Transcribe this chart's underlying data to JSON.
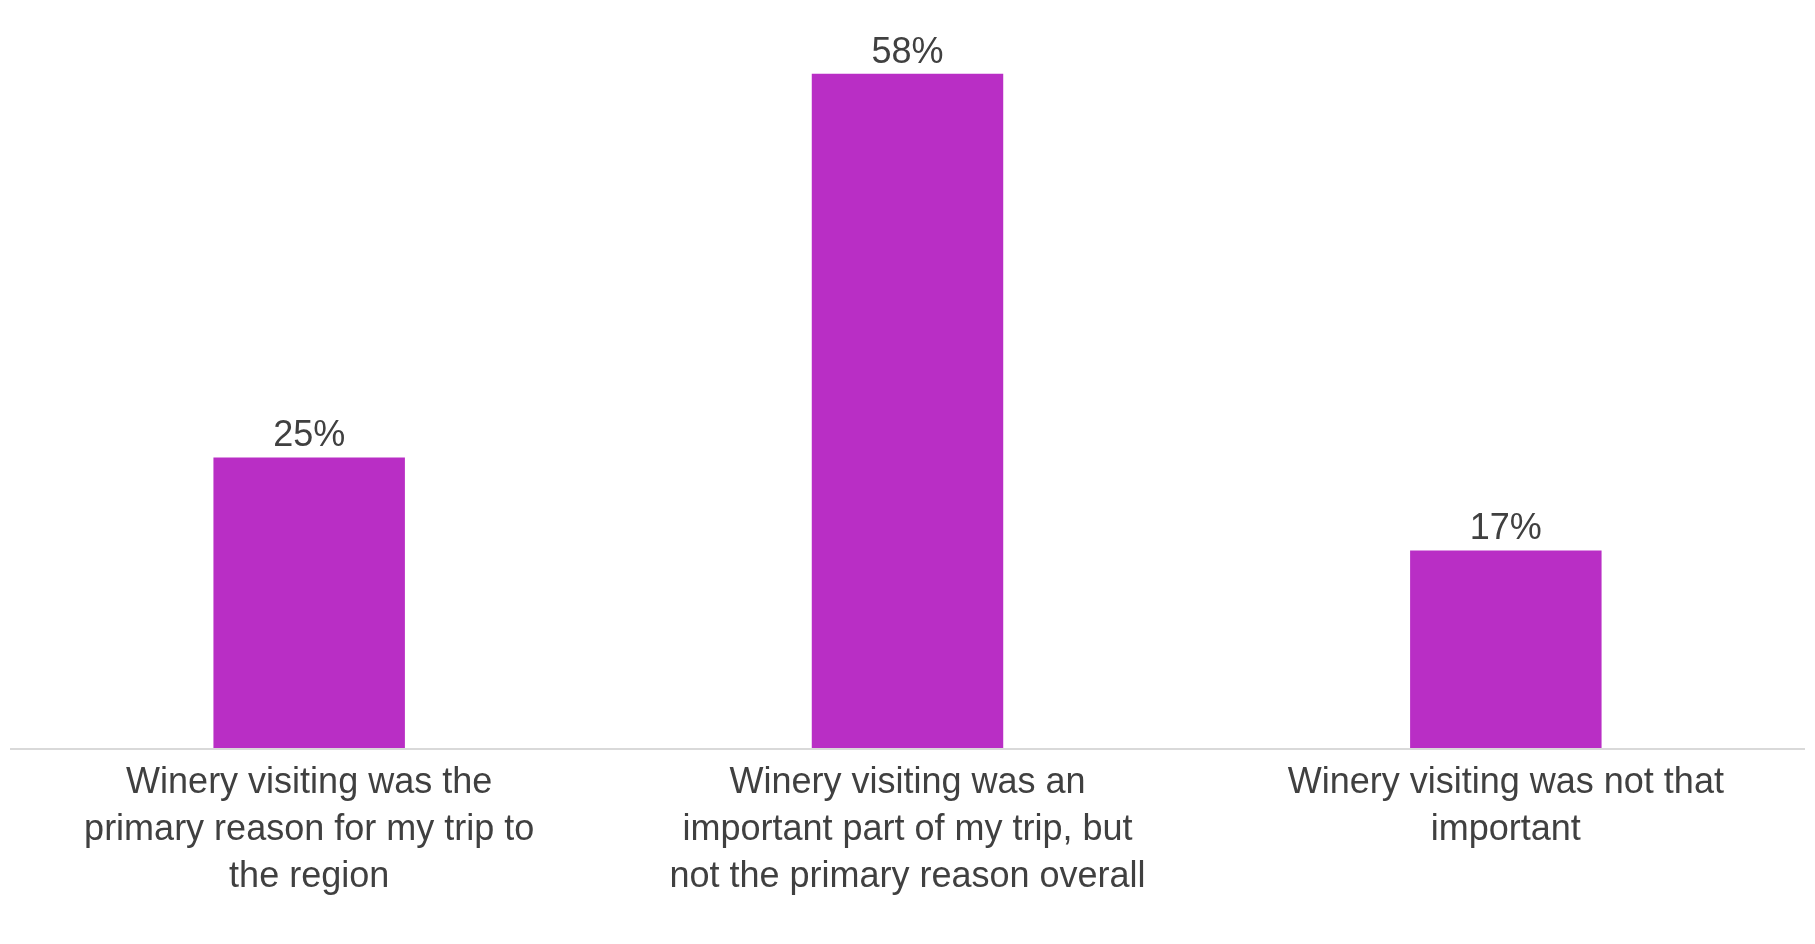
{
  "chart_data": {
    "type": "bar",
    "categories": [
      "Winery visiting was the primary reason for my trip to the region",
      "Winery visiting was an important part of my trip, but not the primary reason overall",
      "Winery visiting was not that important"
    ],
    "values": [
      25,
      58,
      17
    ],
    "value_labels": [
      "25%",
      "58%",
      "17%"
    ],
    "color": "#b92ec5",
    "ylim": [
      0,
      64
    ],
    "tick_labels": "x"
  }
}
